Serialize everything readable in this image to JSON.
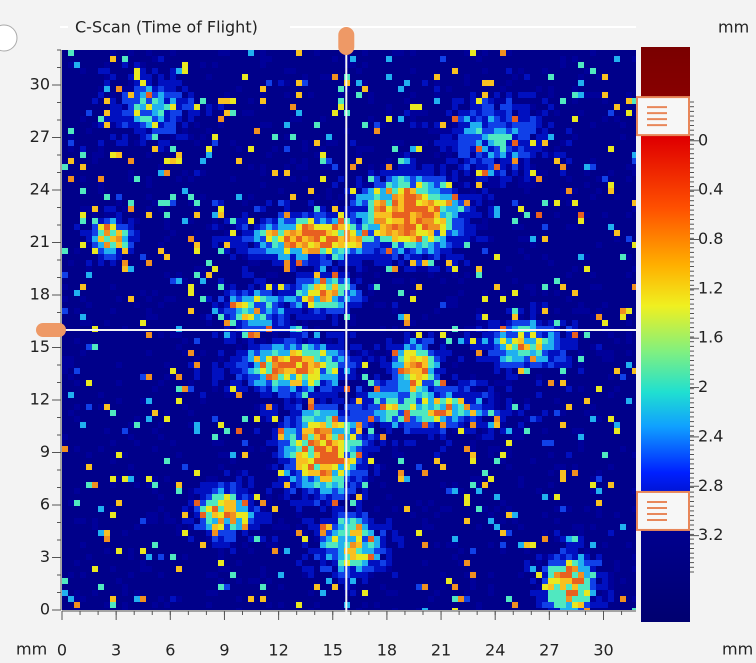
{
  "chart_data": {
    "type": "heatmap",
    "title": "C-Scan (Time of Flight)",
    "x_label": "mm",
    "y_label": "mm",
    "xlim": [
      0,
      31.8
    ],
    "xticks": [
      0,
      3,
      6,
      9,
      12,
      15,
      18,
      21,
      24,
      27,
      30
    ],
    "ylim": [
      0,
      32
    ],
    "yticks": [
      0,
      3,
      6,
      9,
      12,
      15,
      18,
      21,
      24,
      27,
      30
    ],
    "cursor_x": 15.75,
    "cursor_y": 16,
    "colorbar": {
      "label": "mm",
      "bottom_label": "mm",
      "lim": [
        -0.76,
        3.9
      ],
      "ticks": [
        0,
        0.4,
        0.8,
        1.2,
        1.6,
        2,
        2.4,
        2.8,
        3.2
      ],
      "gates": [
        -0.2,
        3.0
      ]
    }
  }
}
